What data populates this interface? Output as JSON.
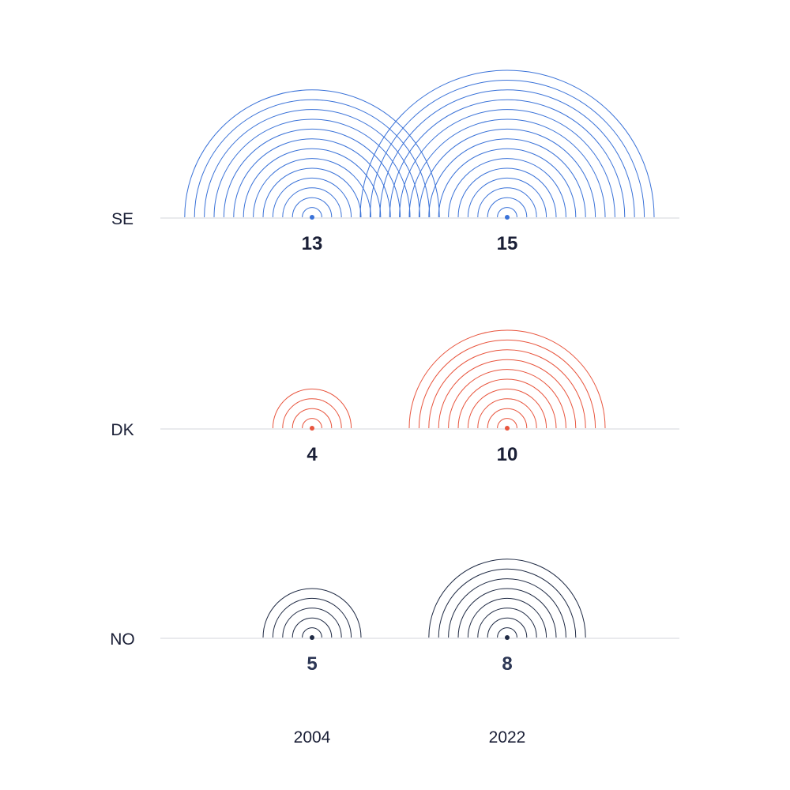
{
  "chart_data": {
    "type": "concentric-semicircles",
    "categories": [
      "2004",
      "2022"
    ],
    "series": [
      {
        "name": "SE",
        "values": [
          13,
          15
        ],
        "color": "#3a72d8",
        "value_color": "#1a1f36"
      },
      {
        "name": "DK",
        "values": [
          4,
          10
        ],
        "color": "#e8553e",
        "value_color": "#1a1f36"
      },
      {
        "name": "NO",
        "values": [
          5,
          8
        ],
        "color": "#1f2a44",
        "value_color": "#2c3654"
      }
    ],
    "baseline_color": "#dcdde2"
  }
}
